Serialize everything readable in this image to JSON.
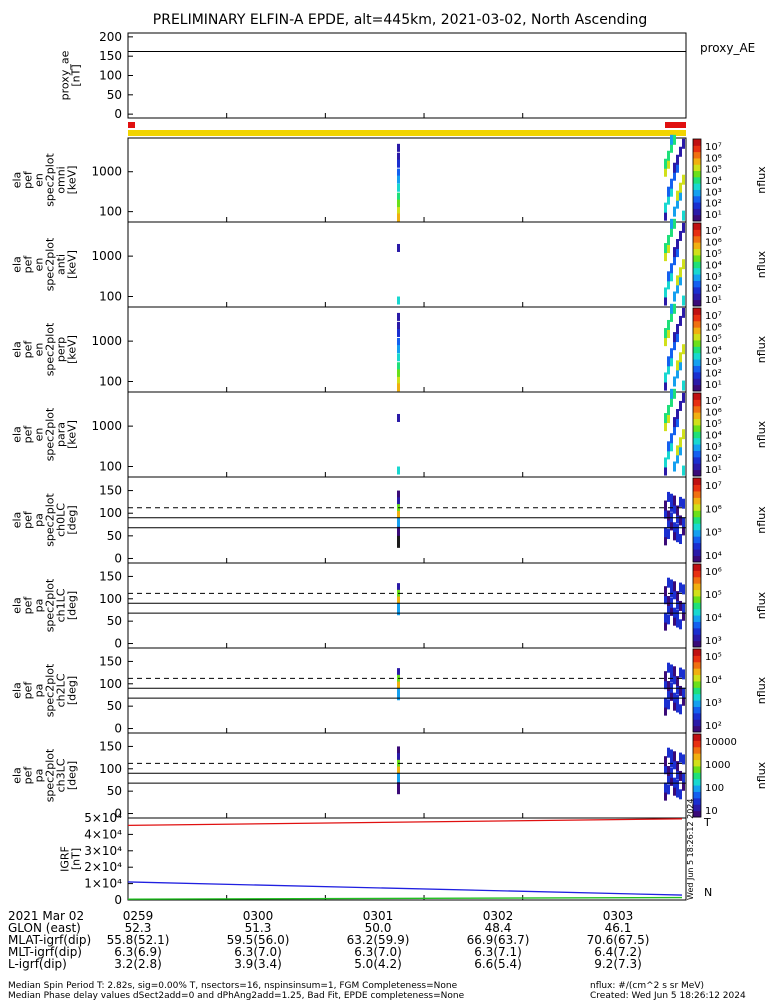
{
  "title": "PRELIMINARY ELFIN-A EPDE, alt=445km, 2021-03-02, North Ascending",
  "colors": {
    "spin_bar": "#f2d400",
    "spin_bar_bad": "#e01010",
    "trace_red": "#e01010",
    "trace_blue": "#2020e0",
    "trace_green": "#20c020",
    "data_black": "#000000"
  },
  "chart_data": [
    {
      "id": "proxy_ae",
      "type": "line",
      "ylabel": "proxy_ae [nT]",
      "legend": "proxy_AE",
      "yticks": [
        "200",
        "150",
        "100",
        "50",
        "0"
      ],
      "ylim": [
        -10,
        210
      ],
      "x_minutes": [
        0,
        5.3
      ],
      "y": [
        162,
        162
      ]
    },
    {
      "id": "spec_omni",
      "type": "heatmap",
      "ylabel_lines": [
        "ela",
        "pef",
        "en",
        "spec2plot",
        "omni",
        "[keV]"
      ],
      "yticks": [
        "1000",
        "100"
      ],
      "ylog": true,
      "ylim_keV": [
        55,
        7000
      ],
      "colorbar": {
        "label": "nflux",
        "ticks": [
          "10⁷",
          "10⁶",
          "10⁵",
          "10⁴",
          "10³",
          "10²",
          "10¹"
        ],
        "range": [
          10,
          10000000
        ]
      }
    },
    {
      "id": "spec_anti",
      "type": "heatmap",
      "ylabel_lines": [
        "ela",
        "pef",
        "en",
        "spec2plot",
        "anti",
        "[keV]"
      ],
      "yticks": [
        "1000",
        "100"
      ],
      "ylog": true,
      "ylim_keV": [
        55,
        7000
      ],
      "colorbar": {
        "label": "nflux",
        "ticks": [
          "10⁷",
          "10⁶",
          "10⁵",
          "10⁴",
          "10³",
          "10²",
          "10¹"
        ],
        "range": [
          10,
          10000000
        ]
      }
    },
    {
      "id": "spec_perp",
      "type": "heatmap",
      "ylabel_lines": [
        "ela",
        "pef",
        "en",
        "spec2plot",
        "perp",
        "[keV]"
      ],
      "yticks": [
        "1000",
        "100"
      ],
      "ylog": true,
      "ylim_keV": [
        55,
        7000
      ],
      "colorbar": {
        "label": "nflux",
        "ticks": [
          "10⁷",
          "10⁶",
          "10⁵",
          "10⁴",
          "10³",
          "10²",
          "10¹"
        ],
        "range": [
          10,
          10000000
        ]
      }
    },
    {
      "id": "spec_para",
      "type": "heatmap",
      "ylabel_lines": [
        "ela",
        "pef",
        "en",
        "spec2plot",
        "para",
        "[keV]"
      ],
      "yticks": [
        "1000",
        "100"
      ],
      "ylog": true,
      "ylim_keV": [
        55,
        7000
      ],
      "colorbar": {
        "label": "nflux",
        "ticks": [
          "10⁷",
          "10⁶",
          "10⁵",
          "10⁴",
          "10³",
          "10²",
          "10¹"
        ],
        "range": [
          10,
          10000000
        ]
      }
    },
    {
      "id": "pa_ch0",
      "type": "heatmap",
      "ylabel_lines": [
        "ela",
        "pef",
        "pa",
        "spec2plot",
        "ch0LC",
        "[deg]"
      ],
      "yticks": [
        "150",
        "100",
        "50",
        "0"
      ],
      "ylim_deg": [
        -10,
        180
      ],
      "lc_solid_deg": [
        68,
        90
      ],
      "lc_dashed_deg": 112,
      "colorbar": {
        "label": "nflux",
        "ticks": [
          "10⁷",
          "10⁶",
          "10⁵",
          "10⁴"
        ],
        "range": [
          3000,
          10000000
        ]
      }
    },
    {
      "id": "pa_ch1",
      "type": "heatmap",
      "ylabel_lines": [
        "ela",
        "pef",
        "pa",
        "spec2plot",
        "ch1LC",
        "[deg]"
      ],
      "yticks": [
        "150",
        "100",
        "50",
        "0"
      ],
      "ylim_deg": [
        -10,
        180
      ],
      "lc_solid_deg": [
        68,
        90
      ],
      "lc_dashed_deg": 112,
      "colorbar": {
        "label": "nflux",
        "ticks": [
          "10⁶",
          "10⁵",
          "10⁴",
          "10³"
        ],
        "range": [
          500,
          2000000
        ]
      }
    },
    {
      "id": "pa_ch2",
      "type": "heatmap",
      "ylabel_lines": [
        "ela",
        "pef",
        "pa",
        "spec2plot",
        "ch2LC",
        "[deg]"
      ],
      "yticks": [
        "150",
        "100",
        "50",
        "0"
      ],
      "ylim_deg": [
        -10,
        180
      ],
      "lc_solid_deg": [
        68,
        90
      ],
      "lc_dashed_deg": 112,
      "colorbar": {
        "label": "nflux",
        "ticks": [
          "10⁵",
          "10⁴",
          "10³",
          "10²"
        ],
        "range": [
          50,
          200000
        ]
      }
    },
    {
      "id": "pa_ch3",
      "type": "heatmap",
      "ylabel_lines": [
        "ela",
        "pef",
        "pa",
        "spec2plot",
        "ch3LC",
        "[deg]"
      ],
      "yticks": [
        "150",
        "100",
        "50",
        "0"
      ],
      "ylim_deg": [
        -10,
        180
      ],
      "lc_solid_deg": [
        68,
        90
      ],
      "lc_dashed_deg": 112,
      "colorbar": {
        "label": "nflux",
        "ticks": [
          "10000",
          "1000",
          "100",
          "10"
        ],
        "range": [
          10,
          20000
        ]
      }
    },
    {
      "id": "igrf",
      "type": "line",
      "ylabel": "IGRF [nT]",
      "yticks": [
        "5×10⁴",
        "4×10⁴",
        "3×10⁴",
        "2×10⁴",
        "1×10⁴",
        "0"
      ],
      "ylim": [
        0,
        50000
      ],
      "legend": [
        "T",
        "N"
      ],
      "x_minutes": [
        0,
        5.3
      ],
      "series": [
        {
          "color": "red",
          "values": [
            45500,
            49500
          ]
        },
        {
          "color": "blue",
          "values": [
            11000,
            3000
          ]
        },
        {
          "color": "green",
          "values": [
            500,
            1500
          ]
        }
      ]
    }
  ],
  "time_axis": {
    "labels": [
      "0259",
      "0300",
      "0301",
      "0302",
      "0303"
    ],
    "x_minutes": [
      0,
      1,
      2,
      3,
      4
    ],
    "range_minutes": [
      0,
      4.75
    ]
  },
  "bottom_table": {
    "row_labels": [
      "2021 Mar 02",
      "GLON (east)",
      "MLAT-igrf(dip)",
      "MLT-igrf(dip)",
      "L-igrf(dip)"
    ],
    "columns": [
      [
        "0259",
        "0300",
        "0301",
        "0302",
        "0303"
      ],
      [
        "52.3",
        "51.3",
        "50.0",
        "48.4",
        "46.1"
      ],
      [
        "55.8(52.1)",
        "59.5(56.0)",
        "63.2(59.9)",
        "66.9(63.7)",
        "70.6(67.5)"
      ],
      [
        "6.3(6.9)",
        "6.3(7.0)",
        "6.3(7.0)",
        "6.3(7.1)",
        "6.4(7.2)"
      ],
      [
        "3.2(2.8)",
        "3.9(3.4)",
        "5.0(4.2)",
        "6.6(5.4)",
        "9.2(7.3)"
      ]
    ]
  },
  "footer": {
    "line1": "Median Spin Period T: 2.82s, sig=0.00% T, nsectors=16, nspinsinsum=1, FGM Completeness=None",
    "line2": "Median Phase delay values dSect2add=0 and dPhAng2add=1.25, Bad Fit, EPDE completeness=None",
    "units": "nflux: #/(cm^2 s sr MeV)",
    "created": "Created: Wed Jun  5 18:26:12 2024",
    "side_stamp": "Wed Jun  5 18:26:12 2024"
  }
}
